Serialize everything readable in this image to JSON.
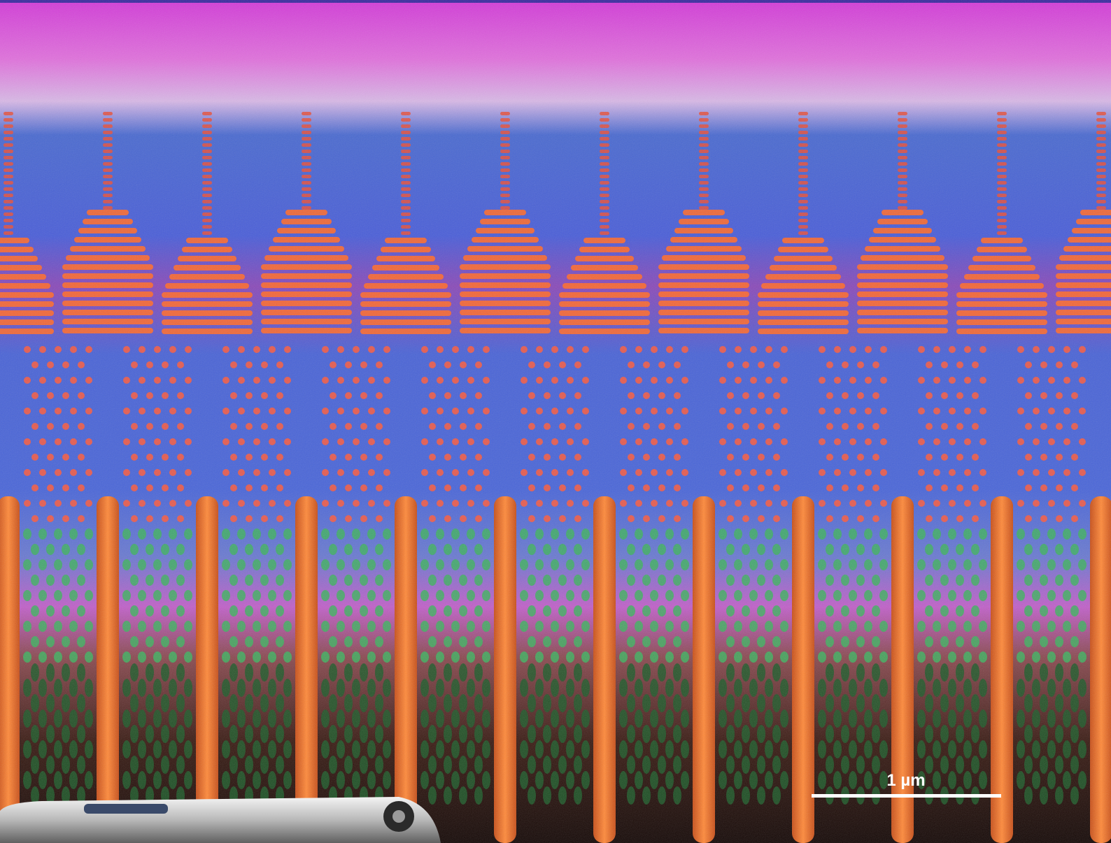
{
  "scale_bar": {
    "label": "1 µm"
  }
}
